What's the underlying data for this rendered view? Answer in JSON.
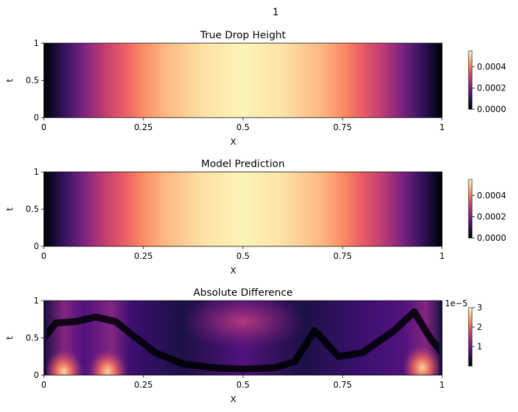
{
  "suptitle": "1",
  "colormap": "magma",
  "chart_data": [
    {
      "type": "heatmap",
      "title": "True Drop Height",
      "xlabel": "X",
      "ylabel": "t",
      "xlim": [
        0,
        1
      ],
      "ylim": [
        0,
        1
      ],
      "x_ticks": [
        0,
        0.25,
        0.5,
        0.75,
        1
      ],
      "x_tick_labels": [
        "0",
        "0.25",
        "0.5",
        "0.75",
        "1"
      ],
      "y_ticks": [
        0,
        0.5,
        1
      ],
      "y_tick_labels": [
        "0",
        "0.5",
        "1"
      ],
      "value_range": [
        0,
        0.00055
      ],
      "colorbar_ticks": [
        0,
        0.0002,
        0.0004
      ],
      "colorbar_tick_labels": [
        "0.0000",
        "0.0002",
        "0.0004"
      ],
      "profile_x": [
        0,
        0.02,
        0.05,
        0.1,
        0.15,
        0.2,
        0.25,
        0.3,
        0.4,
        0.5,
        0.6,
        0.7,
        0.75,
        0.8,
        0.85,
        0.9,
        0.95,
        0.98,
        1
      ],
      "profile_value": [
        0,
        4e-05,
        0.0001,
        0.0002,
        0.00029,
        0.00036,
        0.00042,
        0.00047,
        0.00052,
        0.00054,
        0.00052,
        0.00047,
        0.00042,
        0.00036,
        0.00029,
        0.0002,
        0.0001,
        4e-05,
        0
      ]
    },
    {
      "type": "heatmap",
      "title": "Model Prediction",
      "xlabel": "X",
      "ylabel": "t",
      "xlim": [
        0,
        1
      ],
      "ylim": [
        0,
        1
      ],
      "x_ticks": [
        0,
        0.25,
        0.5,
        0.75,
        1
      ],
      "x_tick_labels": [
        "0",
        "0.25",
        "0.5",
        "0.75",
        "1"
      ],
      "y_ticks": [
        0,
        0.5,
        1
      ],
      "y_tick_labels": [
        "0",
        "0.5",
        "1"
      ],
      "value_range": [
        0,
        0.00055
      ],
      "colorbar_ticks": [
        0,
        0.0002,
        0.0004
      ],
      "colorbar_tick_labels": [
        "0.0000",
        "0.0002",
        "0.0004"
      ],
      "profile_x": [
        0,
        0.02,
        0.05,
        0.1,
        0.15,
        0.2,
        0.25,
        0.3,
        0.4,
        0.5,
        0.6,
        0.7,
        0.75,
        0.8,
        0.85,
        0.9,
        0.95,
        0.98,
        1
      ],
      "profile_value": [
        0,
        4e-05,
        0.0001,
        0.0002,
        0.00029,
        0.00036,
        0.00042,
        0.00047,
        0.00052,
        0.00054,
        0.00052,
        0.00047,
        0.00042,
        0.00036,
        0.00029,
        0.0002,
        0.0001,
        4e-05,
        0
      ]
    },
    {
      "type": "heatmap",
      "title": "Absolute Difference",
      "xlabel": "X",
      "ylabel": "t",
      "xlim": [
        0,
        1
      ],
      "ylim": [
        0,
        1
      ],
      "x_ticks": [
        0,
        0.25,
        0.5,
        0.75,
        1
      ],
      "x_tick_labels": [
        "0",
        "0.25",
        "0.5",
        "0.75",
        "1"
      ],
      "y_ticks": [
        0,
        0.5,
        1
      ],
      "y_tick_labels": [
        "0",
        "0.5",
        "1"
      ],
      "value_range": [
        0,
        3e-05
      ],
      "colorbar_offset_label": "1e−5",
      "colorbar_ticks": [
        1e-05,
        2e-05,
        3e-05
      ],
      "colorbar_tick_labels": [
        "1",
        "2",
        "3"
      ],
      "approx_peak_regions": [
        {
          "x": 0.05,
          "t": 0.05,
          "value": 2.8e-05
        },
        {
          "x": 0.16,
          "t": 0.05,
          "value": 2.6e-05
        },
        {
          "x": 0.95,
          "t": 0.1,
          "value": 2.8e-05
        },
        {
          "x": 0.5,
          "t": 0.75,
          "value": 1.3e-05
        }
      ]
    }
  ]
}
